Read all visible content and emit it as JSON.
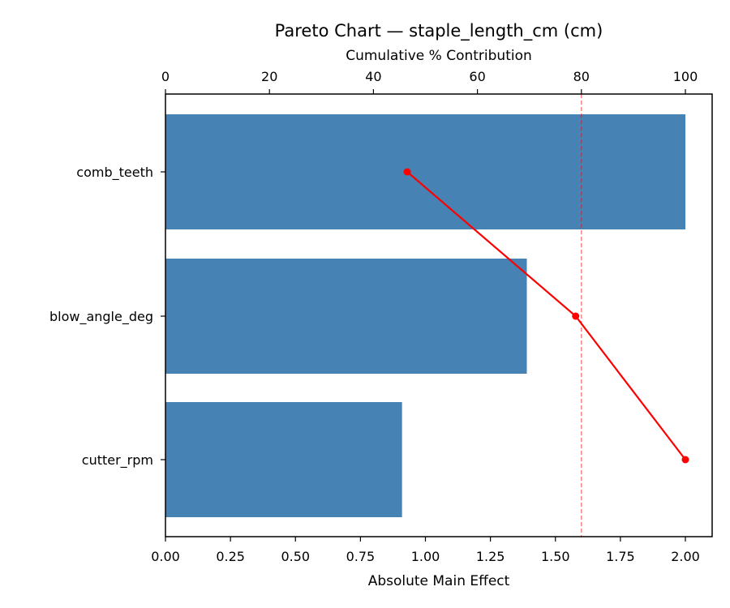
{
  "chart_data": {
    "type": "bar",
    "orientation": "horizontal",
    "title": "Pareto Chart — staple_length_cm (cm)",
    "xlabel": "Absolute Main Effect",
    "ylabel": "",
    "xlim": [
      0,
      2.15
    ],
    "xticks": [
      "0.00",
      "0.25",
      "0.50",
      "0.75",
      "1.00",
      "1.25",
      "1.50",
      "1.75",
      "2.00"
    ],
    "categories": [
      "comb_teeth",
      "blow_angle_deg",
      "cutter_rpm"
    ],
    "series": [
      {
        "name": "Absolute Main Effect",
        "type": "bar",
        "color": "#4682b4",
        "values": [
          2.0,
          1.39,
          0.91
        ]
      },
      {
        "name": "Cumulative % Contribution",
        "type": "line",
        "axis": "top",
        "color": "#ff0000",
        "values": [
          46.5,
          78.9,
          100.0
        ]
      }
    ],
    "secondary_axis": {
      "position": "top",
      "label": "Cumulative % Contribution",
      "lim": [
        0,
        105
      ],
      "ticks": [
        "0",
        "20",
        "40",
        "60",
        "80",
        "100"
      ]
    },
    "reference_line": {
      "axis": "top",
      "value": 80,
      "style": "dashed",
      "color": "#ff0000"
    },
    "grid": false,
    "legend": null
  }
}
